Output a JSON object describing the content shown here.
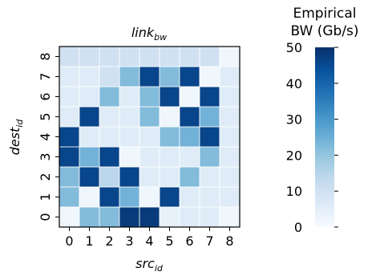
{
  "chart_data": {
    "type": "heatmap",
    "title": "link",
    "title_subscript": "bw",
    "xlabel": "src",
    "xlabel_subscript": "id",
    "ylabel": "dest",
    "ylabel_subscript": "id",
    "x_categories": [
      "0",
      "1",
      "2",
      "3",
      "4",
      "5",
      "6",
      "7",
      "8"
    ],
    "y_categories": [
      "0",
      "1",
      "2",
      "3",
      "4",
      "5",
      "6",
      "7",
      "8"
    ],
    "colorbar": {
      "label_line1": "Empirical",
      "label_line2": "BW (Gb/s)",
      "range": [
        0,
        50
      ],
      "ticks": [
        "0",
        "10",
        "20",
        "30",
        "40",
        "50"
      ],
      "colormap": "Blues"
    },
    "values": [
      [
        2,
        22,
        22,
        48,
        48,
        4,
        6,
        6,
        2
      ],
      [
        22,
        2,
        46,
        24,
        2,
        46,
        6,
        6,
        6
      ],
      [
        22,
        46,
        14,
        46,
        6,
        6,
        22,
        6,
        6
      ],
      [
        46,
        24,
        46,
        2,
        6,
        6,
        6,
        22,
        6
      ],
      [
        46,
        6,
        6,
        6,
        6,
        22,
        24,
        46,
        6
      ],
      [
        6,
        46,
        6,
        6,
        22,
        2,
        46,
        24,
        6
      ],
      [
        6,
        6,
        22,
        6,
        22,
        46,
        2,
        46,
        6
      ],
      [
        6,
        6,
        10,
        22,
        46,
        22,
        46,
        2,
        6
      ],
      [
        10,
        10,
        10,
        10,
        10,
        10,
        10,
        10,
        2
      ]
    ],
    "grid": false
  }
}
